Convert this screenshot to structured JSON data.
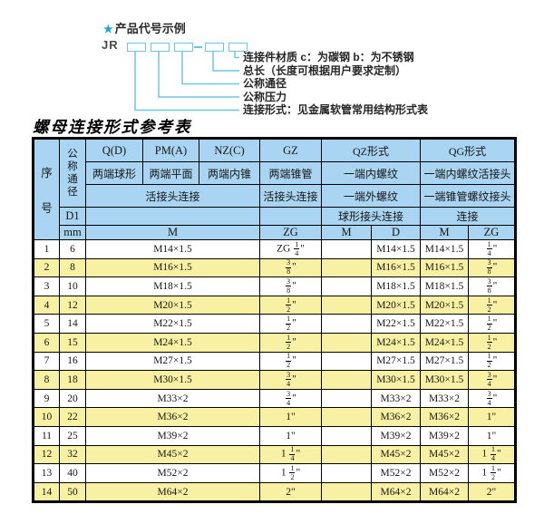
{
  "diagram": {
    "star": "★",
    "title": "产品代号示例",
    "prefix": "JR",
    "labels": [
      "连接件材质  c：为碳钢  b：为不锈钢",
      "总长（长度可根据用户要求定制）",
      "公称通径",
      "公称压力",
      "连接形式：见金属软管常用结构形式表"
    ]
  },
  "table": {
    "title": "螺母连接形式参考表",
    "header": {
      "col_serial": "序号",
      "col_diameter": "公称通径",
      "d1": "D1",
      "mm": "mm",
      "forms": [
        "Q(D)",
        "PM(A)",
        "NZ(C)",
        "GZ",
        "QZ形式",
        "QG形式"
      ],
      "ends": [
        "两端球形",
        "两端平面",
        "两端内锥",
        "两端锥管",
        "一端内螺纹",
        "一端内螺纹活接头"
      ],
      "joints": [
        "活接头连接",
        "活接头连接",
        "一端外螺纹",
        "一端锥管螺纹接头"
      ],
      "connections": [
        "球形接头连接",
        "连接"
      ],
      "units": [
        "M",
        "ZG",
        "M",
        "D",
        "M",
        "ZG"
      ]
    },
    "rows": [
      {
        "no": "1",
        "mm": "6",
        "m": "M14×1.5",
        "gz": "ZG 1/4\"",
        "qz_m": "",
        "qz_d": "M14×1.5",
        "qg_m": "M14×1.5",
        "qg_zg": "1/4\""
      },
      {
        "no": "2",
        "mm": "8",
        "m": "M16×1.5",
        "gz": "3/8\"",
        "qz_m": "",
        "qz_d": "M16×1.5",
        "qg_m": "M16×1.5",
        "qg_zg": "3/8\""
      },
      {
        "no": "3",
        "mm": "10",
        "m": "M18×1.5",
        "gz": "3/8\"",
        "qz_m": "",
        "qz_d": "M18×1.5",
        "qg_m": "M18×1.5",
        "qg_zg": "3/8\""
      },
      {
        "no": "4",
        "mm": "12",
        "m": "M20×1.5",
        "gz": "1/2\"",
        "qz_m": "",
        "qz_d": "M20×1.5",
        "qg_m": "M20×1.5",
        "qg_zg": "1/2\""
      },
      {
        "no": "5",
        "mm": "14",
        "m": "M22×1.5",
        "gz": "1/2\"",
        "qz_m": "",
        "qz_d": "M22×1.5",
        "qg_m": "M22×1.5",
        "qg_zg": "1/2\""
      },
      {
        "no": "6",
        "mm": "15",
        "m": "M24×1.5",
        "gz": "1/2\"",
        "qz_m": "",
        "qz_d": "M24×1.5",
        "qg_m": "M24×1.5",
        "qg_zg": "1/2\""
      },
      {
        "no": "7",
        "mm": "16",
        "m": "M27×1.5",
        "gz": "1/2\"",
        "qz_m": "",
        "qz_d": "M27×1.5",
        "qg_m": "M27×1.5",
        "qg_zg": "1/2\""
      },
      {
        "no": "8",
        "mm": "18",
        "m": "M30×1.5",
        "gz": "3/4\"",
        "qz_m": "",
        "qz_d": "M30×1.5",
        "qg_m": "M30×1.5",
        "qg_zg": "3/4\""
      },
      {
        "no": "9",
        "mm": "20",
        "m": "M33×2",
        "gz": "3/4\"",
        "qz_m": "",
        "qz_d": "M33×2",
        "qg_m": "M33×2",
        "qg_zg": "3/4\""
      },
      {
        "no": "10",
        "mm": "22",
        "m": "M36×2",
        "gz": "1\"",
        "qz_m": "",
        "qz_d": "M36×2",
        "qg_m": "M36×2",
        "qg_zg": "1\""
      },
      {
        "no": "11",
        "mm": "25",
        "m": "M39×2",
        "gz": "1\"",
        "qz_m": "",
        "qz_d": "M39×2",
        "qg_m": "M39×2",
        "qg_zg": "1\""
      },
      {
        "no": "12",
        "mm": "32",
        "m": "M45×2",
        "gz": "1 1/4\"",
        "qz_m": "",
        "qz_d": "M45×2",
        "qg_m": "M45×2",
        "qg_zg": "1 1/4\""
      },
      {
        "no": "13",
        "mm": "40",
        "m": "M52×2",
        "gz": "1 1/2\"",
        "qz_m": "",
        "qz_d": "M52×2",
        "qg_m": "M52×2",
        "qg_zg": "1 1/2\""
      },
      {
        "no": "14",
        "mm": "50",
        "m": "M64×2",
        "gz": "2\"",
        "qz_m": "",
        "qz_d": "M64×2",
        "qg_m": "M64×2",
        "qg_zg": "2\""
      }
    ]
  },
  "colors": {
    "header_blue": "#a9d5f2",
    "row_yellow": "#f8f0a2",
    "line_cyan": "#6cc7e6",
    "star_blue": "#21a3d8",
    "border": "#000000"
  }
}
